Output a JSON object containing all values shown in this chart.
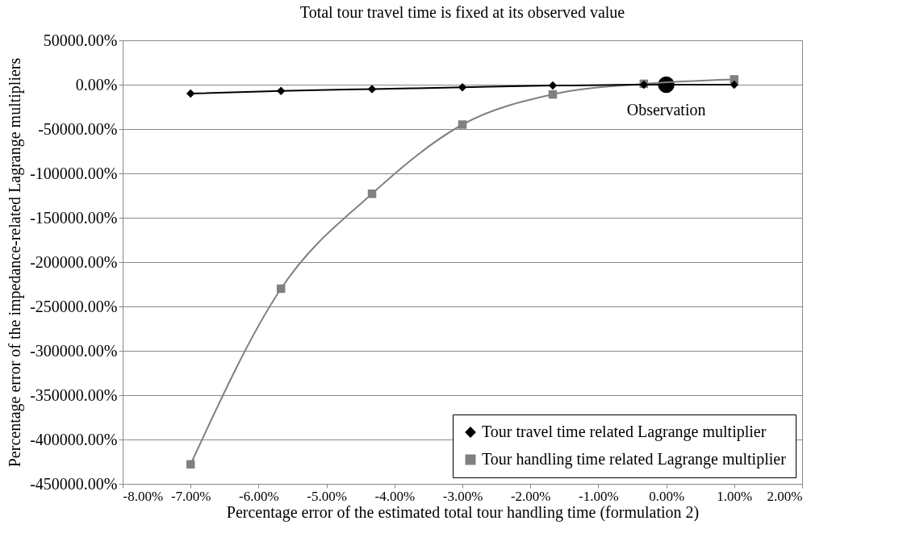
{
  "chart_data": {
    "type": "line",
    "title": "Total tour travel time is fixed at its observed value",
    "xlabel": "Percentage error of the estimated total tour handling time (formulation 2)",
    "ylabel": "Percentage error of the impedance-related Lagrange multipliers",
    "series": [
      {
        "name": "Tour travel time related Lagrange multiplier",
        "color": "#000000",
        "marker": "diamond",
        "x": [
          -7,
          -5.67,
          -4.33,
          -3,
          -1.67,
          -0.33,
          1
        ],
        "values": [
          -10000,
          -7000,
          -5000,
          -3000,
          -1000,
          0,
          0
        ]
      },
      {
        "name": "Tour handling time related Lagrange multiplier",
        "color": "#808080",
        "marker": "square",
        "x": [
          -7,
          -5.67,
          -4.33,
          -3,
          -1.67,
          -0.33,
          1
        ],
        "values": [
          -428000,
          -230000,
          -123000,
          -45000,
          -11000,
          1000,
          6000
        ]
      },
      {
        "type": "scatter",
        "color": "#000000",
        "marker": "circle",
        "x": [
          0
        ],
        "values": [
          0
        ]
      }
    ],
    "annotations": [
      {
        "text": "Observation",
        "x": 0,
        "y": 0
      }
    ],
    "xlim": [
      -8,
      2
    ],
    "xticks": [
      {
        "value": -8,
        "label": "-8.00%"
      },
      {
        "value": -7,
        "label": "-7.00%"
      },
      {
        "value": -6,
        "label": "-6.00%"
      },
      {
        "value": -5,
        "label": "-5.00%"
      },
      {
        "value": -4,
        "label": "-4.00%"
      },
      {
        "value": -3,
        "label": "-3.00%"
      },
      {
        "value": -2,
        "label": "-2.00%"
      },
      {
        "value": -1,
        "label": "-1.00%"
      },
      {
        "value": 0,
        "label": "0.00%"
      },
      {
        "value": 1,
        "label": "1.00%"
      },
      {
        "value": 2,
        "label": "2.00%"
      }
    ],
    "ylim": [
      -450000,
      50000
    ],
    "yticks": [
      {
        "value": 50000,
        "label": "50000.00%"
      },
      {
        "value": 0,
        "label": "0.00%"
      },
      {
        "value": -50000,
        "label": "-50000.00%"
      },
      {
        "value": -100000,
        "label": "-100000.00%"
      },
      {
        "value": -150000,
        "label": "-150000.00%"
      },
      {
        "value": -200000,
        "label": "-200000.00%"
      },
      {
        "value": -250000,
        "label": "-250000.00%"
      },
      {
        "value": -300000,
        "label": "-300000.00%"
      },
      {
        "value": -350000,
        "label": "-350000.00%"
      },
      {
        "value": -400000,
        "label": "-400000.00%"
      },
      {
        "value": -450000,
        "label": "-450000.00%"
      }
    ],
    "grid": "y",
    "legend": "bottom right"
  }
}
